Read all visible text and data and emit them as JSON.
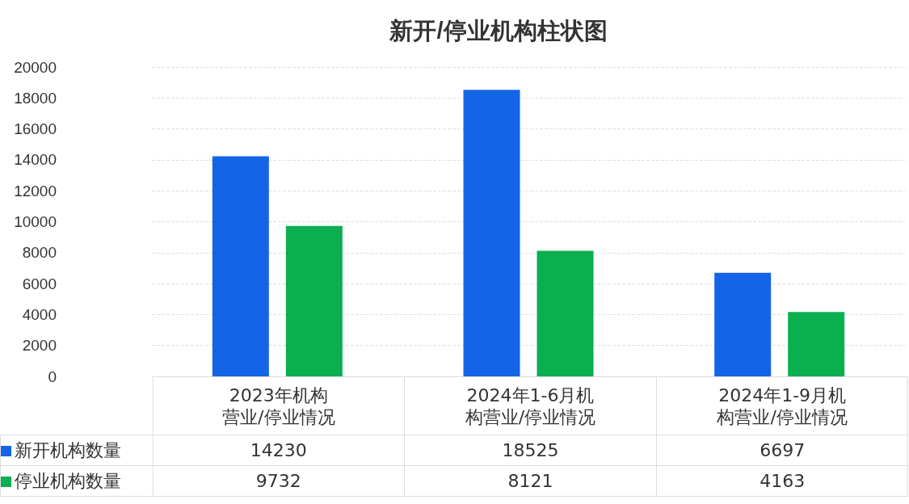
{
  "chart_data": {
    "type": "bar",
    "title": "新开/停业机构柱状图",
    "categories": [
      "2023年机构营业/停业情况",
      "2024年1-6月机构营业/停业情况",
      "2024年1-9月机构营业/停业情况"
    ],
    "series": [
      {
        "name": "新开机构数量",
        "color": "#1464e6",
        "values": [
          14230,
          18525,
          6697
        ]
      },
      {
        "name": "停业机构数量",
        "color": "#0aaf50",
        "values": [
          9732,
          8121,
          4163
        ]
      }
    ],
    "ylim": [
      0,
      20000
    ],
    "yticks": [
      0,
      2000,
      4000,
      6000,
      8000,
      10000,
      12000,
      14000,
      16000,
      18000,
      20000
    ],
    "grid": "y",
    "legend": "bottom left",
    "data_labels": true
  }
}
